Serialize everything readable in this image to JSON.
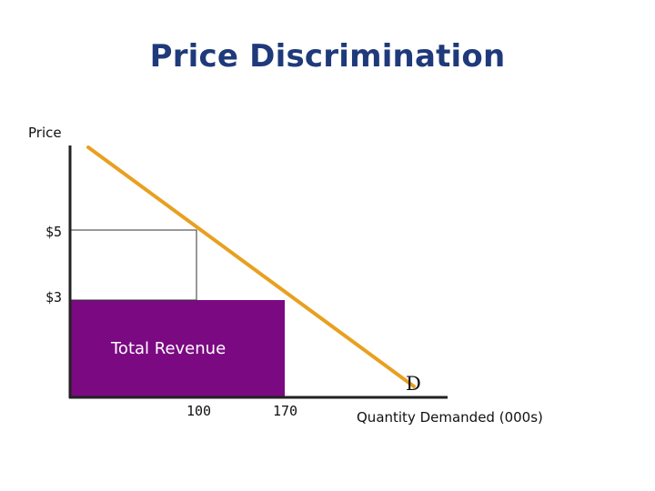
{
  "title": "Price Discrimination",
  "y_axis_label": "Price",
  "x_axis_label": "Quantity Demanded (000s)",
  "y_ticks": [
    "$5",
    "$3"
  ],
  "x_ticks": [
    "100",
    "170"
  ],
  "demand_label": "D",
  "revenue_label": "Total Revenue",
  "colors": {
    "title": "#1f3a7a",
    "demand_line": "#e8a020",
    "revenue_fill": "#7b0a82",
    "axis": "#222222"
  }
}
